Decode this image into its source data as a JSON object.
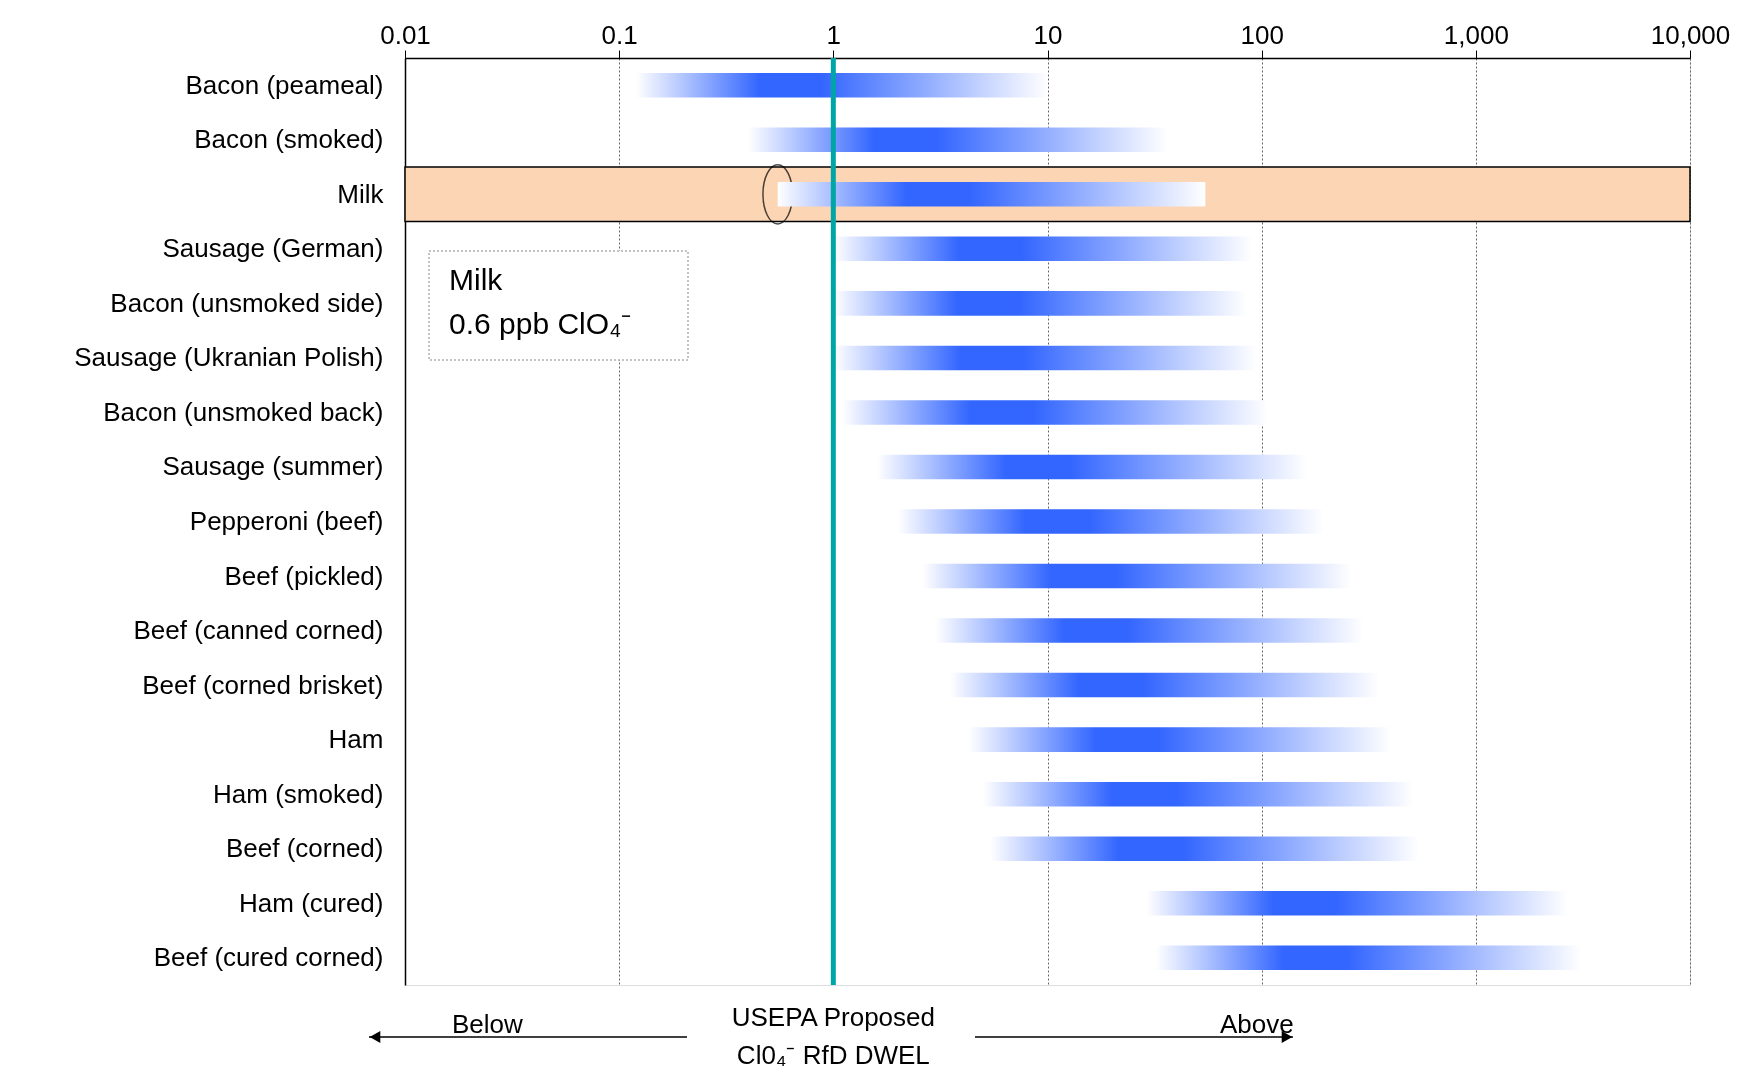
{
  "chart_data": {
    "type": "bar",
    "orientation": "horizontal",
    "log": "x",
    "categories": [
      "Bacon (peameal)",
      "Bacon (smoked)",
      "Milk",
      "Sausage (German)",
      "Bacon (unsmoked side)",
      "Sausage (Ukranian Polish)",
      "Bacon (unsmoked back)",
      "Sausage (summer)",
      "Pepperoni (beef)",
      "Beef (pickled)",
      "Beef (canned corned)",
      "Beef (corned brisket)",
      "Ham",
      "Ham (smoked)",
      "Beef (corned)",
      "Ham (cured)",
      "Beef (cured corned)"
    ],
    "series": [
      {
        "color": "#3366ff",
        "base": [
          0.12,
          0.4,
          0.55,
          1,
          1,
          1,
          1.1,
          1.6,
          2,
          2.6,
          3,
          3.5,
          4.3,
          5,
          5.4,
          29,
          32
        ],
        "values": [
          9.9,
          36,
          54,
          89,
          84,
          94,
          106,
          160,
          193,
          260,
          294,
          350,
          396,
          505,
          535,
          2670,
          3070
        ]
      }
    ],
    "xlim": [
      0.01,
      10000
    ],
    "xticks": [
      0.01,
      0.1,
      1,
      10,
      100,
      {
        "value": 1000,
        "label": "1,000"
      },
      {
        "value": 10000,
        "label": "10,000"
      }
    ],
    "grid": "x",
    "ref_lines": [
      {
        "axis": "x",
        "value": 1,
        "label": "USEPA Proposed\nCl0₄⁻ RfD DWEL",
        "color": "#00a6a6"
      }
    ],
    "bands": [
      {
        "axis": "y",
        "from": "Milk",
        "to": "Milk",
        "color": "#fcd5b4"
      }
    ],
    "annotations": [
      "Milk\n0.6 ppb ClO₄⁻",
      "Below",
      "Above"
    ]
  }
}
